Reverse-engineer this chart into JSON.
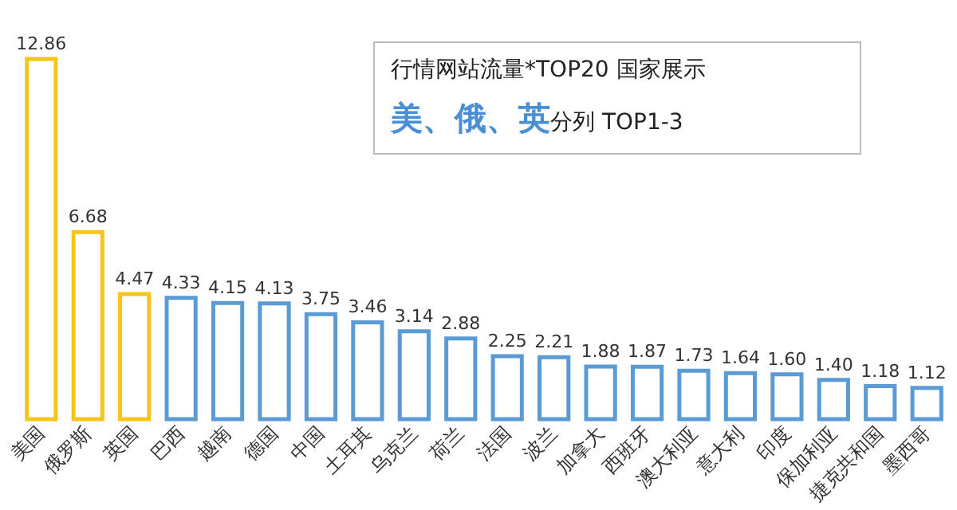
{
  "chart_data": {
    "type": "bar",
    "categories": [
      "美国",
      "俄罗斯",
      "英国",
      "巴西",
      "越南",
      "德国",
      "中国",
      "土耳其",
      "乌克兰",
      "荷兰",
      "法国",
      "波兰",
      "加拿大",
      "西班牙",
      "澳大利亚",
      "意大利",
      "印度",
      "保加利亚",
      "捷克共和国",
      "墨西哥"
    ],
    "values": [
      12.86,
      6.68,
      4.47,
      4.33,
      4.15,
      4.13,
      3.75,
      3.46,
      3.14,
      2.88,
      2.25,
      2.21,
      1.88,
      1.87,
      1.73,
      1.64,
      1.6,
      1.4,
      1.18,
      1.12
    ],
    "colors": [
      "#f5c518",
      "#f5c518",
      "#f5c518",
      "#5b9bd5",
      "#5b9bd5",
      "#5b9bd5",
      "#5b9bd5",
      "#5b9bd5",
      "#5b9bd5",
      "#5b9bd5",
      "#5b9bd5",
      "#5b9bd5",
      "#5b9bd5",
      "#5b9bd5",
      "#5b9bd5",
      "#5b9bd5",
      "#5b9bd5",
      "#5b9bd5",
      "#5b9bd5",
      "#5b9bd5"
    ],
    "value_labels": [
      "12.86",
      "6.68",
      "4.47",
      "4.33",
      "4.15",
      "4.13",
      "3.75",
      "3.46",
      "3.14",
      "2.88",
      "2.25",
      "2.21",
      "1.88",
      "1.87",
      "1.73",
      "1.64",
      "1.60",
      "1.40",
      "1.18",
      "1.12"
    ],
    "annotations": [
      "行情网站流量*TOP20 国家展示",
      "美、俄、英",
      "分列 TOP1-3"
    ]
  }
}
